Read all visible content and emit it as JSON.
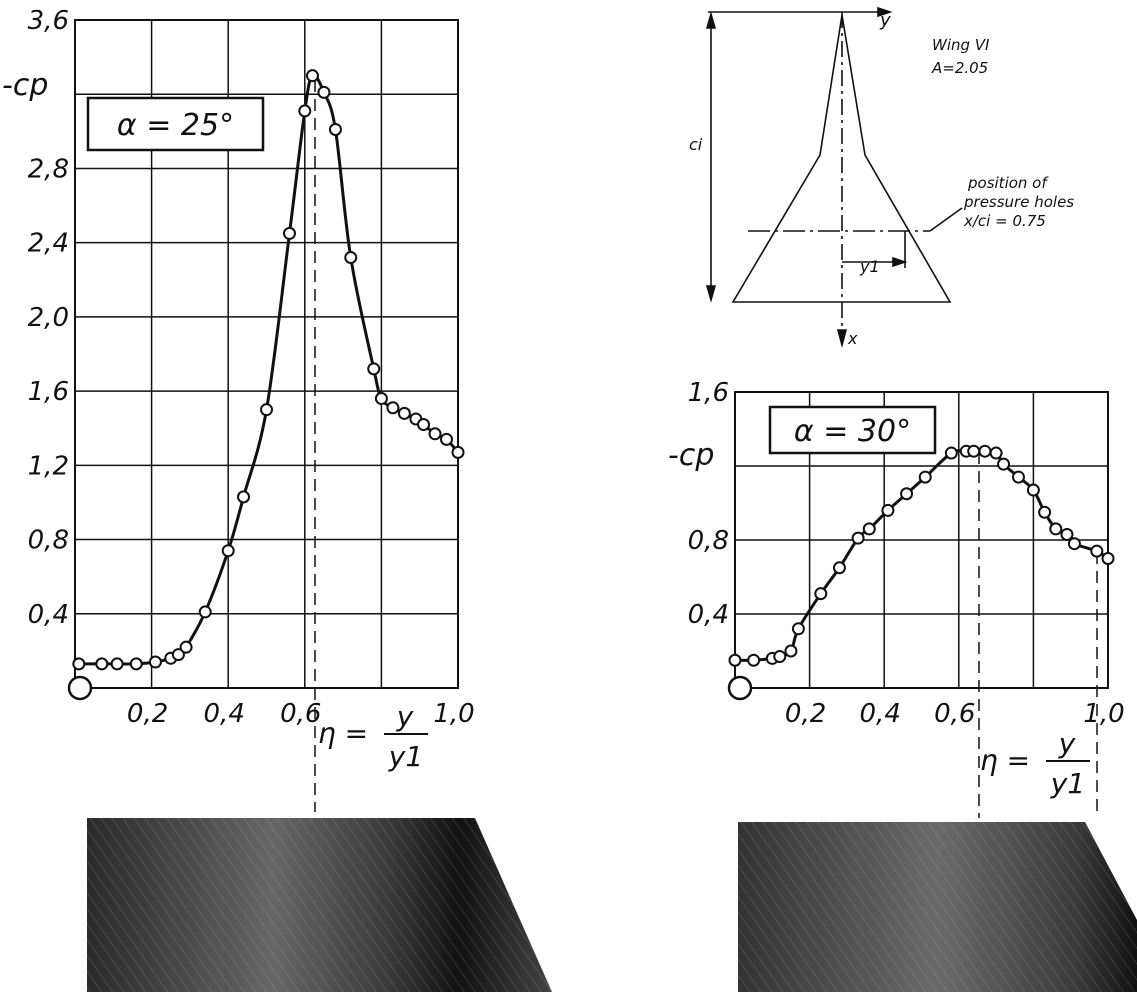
{
  "chart_data": [
    {
      "type": "line",
      "annotation": "α = 25°",
      "ylabel": "-cp",
      "xlabel": {
        "lhs": "η =",
        "numerator": "y",
        "denominator": "y1"
      },
      "x": [
        0.01,
        0.07,
        0.11,
        0.16,
        0.21,
        0.25,
        0.27,
        0.29,
        0.34,
        0.4,
        0.44,
        0.5,
        0.56,
        0.6,
        0.62,
        0.65,
        0.68,
        0.72,
        0.78,
        0.8,
        0.83,
        0.86,
        0.89,
        0.91,
        0.94,
        0.97,
        1.0
      ],
      "values": [
        0.13,
        0.13,
        0.13,
        0.13,
        0.14,
        0.16,
        0.18,
        0.22,
        0.41,
        0.74,
        1.03,
        1.5,
        2.45,
        3.11,
        3.3,
        3.21,
        3.01,
        2.32,
        1.72,
        1.56,
        1.51,
        1.48,
        1.45,
        1.42,
        1.37,
        1.34,
        1.27
      ],
      "color": "#111111",
      "xlim": [
        0,
        1.0
      ],
      "ylim": [
        0,
        3.6
      ],
      "xticks": [
        {
          "value": 0.2,
          "label": "0,2"
        },
        {
          "value": 0.4,
          "label": "0,4"
        },
        {
          "value": 0.6,
          "label": "0,6"
        },
        {
          "value": 1.0,
          "label": "1,0"
        }
      ],
      "yticks": [
        {
          "value": 0.4,
          "label": "0,4"
        },
        {
          "value": 0.8,
          "label": "0,8"
        },
        {
          "value": 1.2,
          "label": "1,2"
        },
        {
          "value": 1.6,
          "label": "1,6"
        },
        {
          "value": 2.0,
          "label": "2,0"
        },
        {
          "value": 2.4,
          "label": "2,4"
        },
        {
          "value": 2.8,
          "label": "2,8"
        },
        {
          "value": 3.6,
          "label": "3,6"
        }
      ],
      "xgrid": [
        0.2,
        0.4,
        0.6,
        0.8
      ],
      "ygrid": [
        0.4,
        0.8,
        1.2,
        1.6,
        2.0,
        2.4,
        2.8,
        3.2
      ],
      "grid": true
    },
    {
      "type": "line",
      "annotation": "α = 30°",
      "ylabel": "-cp",
      "xlabel": {
        "lhs": "η =",
        "numerator": "y",
        "denominator": "y1"
      },
      "x": [
        0.0,
        0.05,
        0.1,
        0.12,
        0.15,
        0.17,
        0.23,
        0.28,
        0.33,
        0.36,
        0.41,
        0.46,
        0.51,
        0.58,
        0.62,
        0.64,
        0.67,
        0.7,
        0.72,
        0.76,
        0.8,
        0.83,
        0.86,
        0.89,
        0.91,
        0.97,
        1.0
      ],
      "values": [
        0.15,
        0.15,
        0.16,
        0.17,
        0.2,
        0.32,
        0.51,
        0.65,
        0.81,
        0.86,
        0.96,
        1.05,
        1.14,
        1.27,
        1.28,
        1.28,
        1.28,
        1.27,
        1.21,
        1.14,
        1.07,
        0.95,
        0.86,
        0.83,
        0.78,
        0.74,
        0.7
      ],
      "color": "#111111",
      "xlim": [
        0,
        1.0
      ],
      "ylim": [
        0,
        1.6
      ],
      "xticks": [
        {
          "value": 0.2,
          "label": "0,2"
        },
        {
          "value": 0.4,
          "label": "0,4"
        },
        {
          "value": 0.6,
          "label": "0,6"
        },
        {
          "value": 1.0,
          "label": "1,0"
        }
      ],
      "yticks": [
        {
          "value": 0.4,
          "label": "0,4"
        },
        {
          "value": 0.8,
          "label": "0,8"
        },
        {
          "value": 1.6,
          "label": "1,6"
        }
      ],
      "xgrid": [
        0.2,
        0.4,
        0.6,
        0.8
      ],
      "ygrid": [
        0.4,
        0.8,
        1.2
      ],
      "grid": true
    }
  ],
  "diagram": {
    "y_axis": "y",
    "x_axis": "x",
    "chord": "ci",
    "wing": "Wing VI",
    "aspect": "A=2.05",
    "note_1": "position of",
    "note_2": "pressure holes",
    "note_3": "x/ci = 0.75",
    "span": "y1"
  }
}
